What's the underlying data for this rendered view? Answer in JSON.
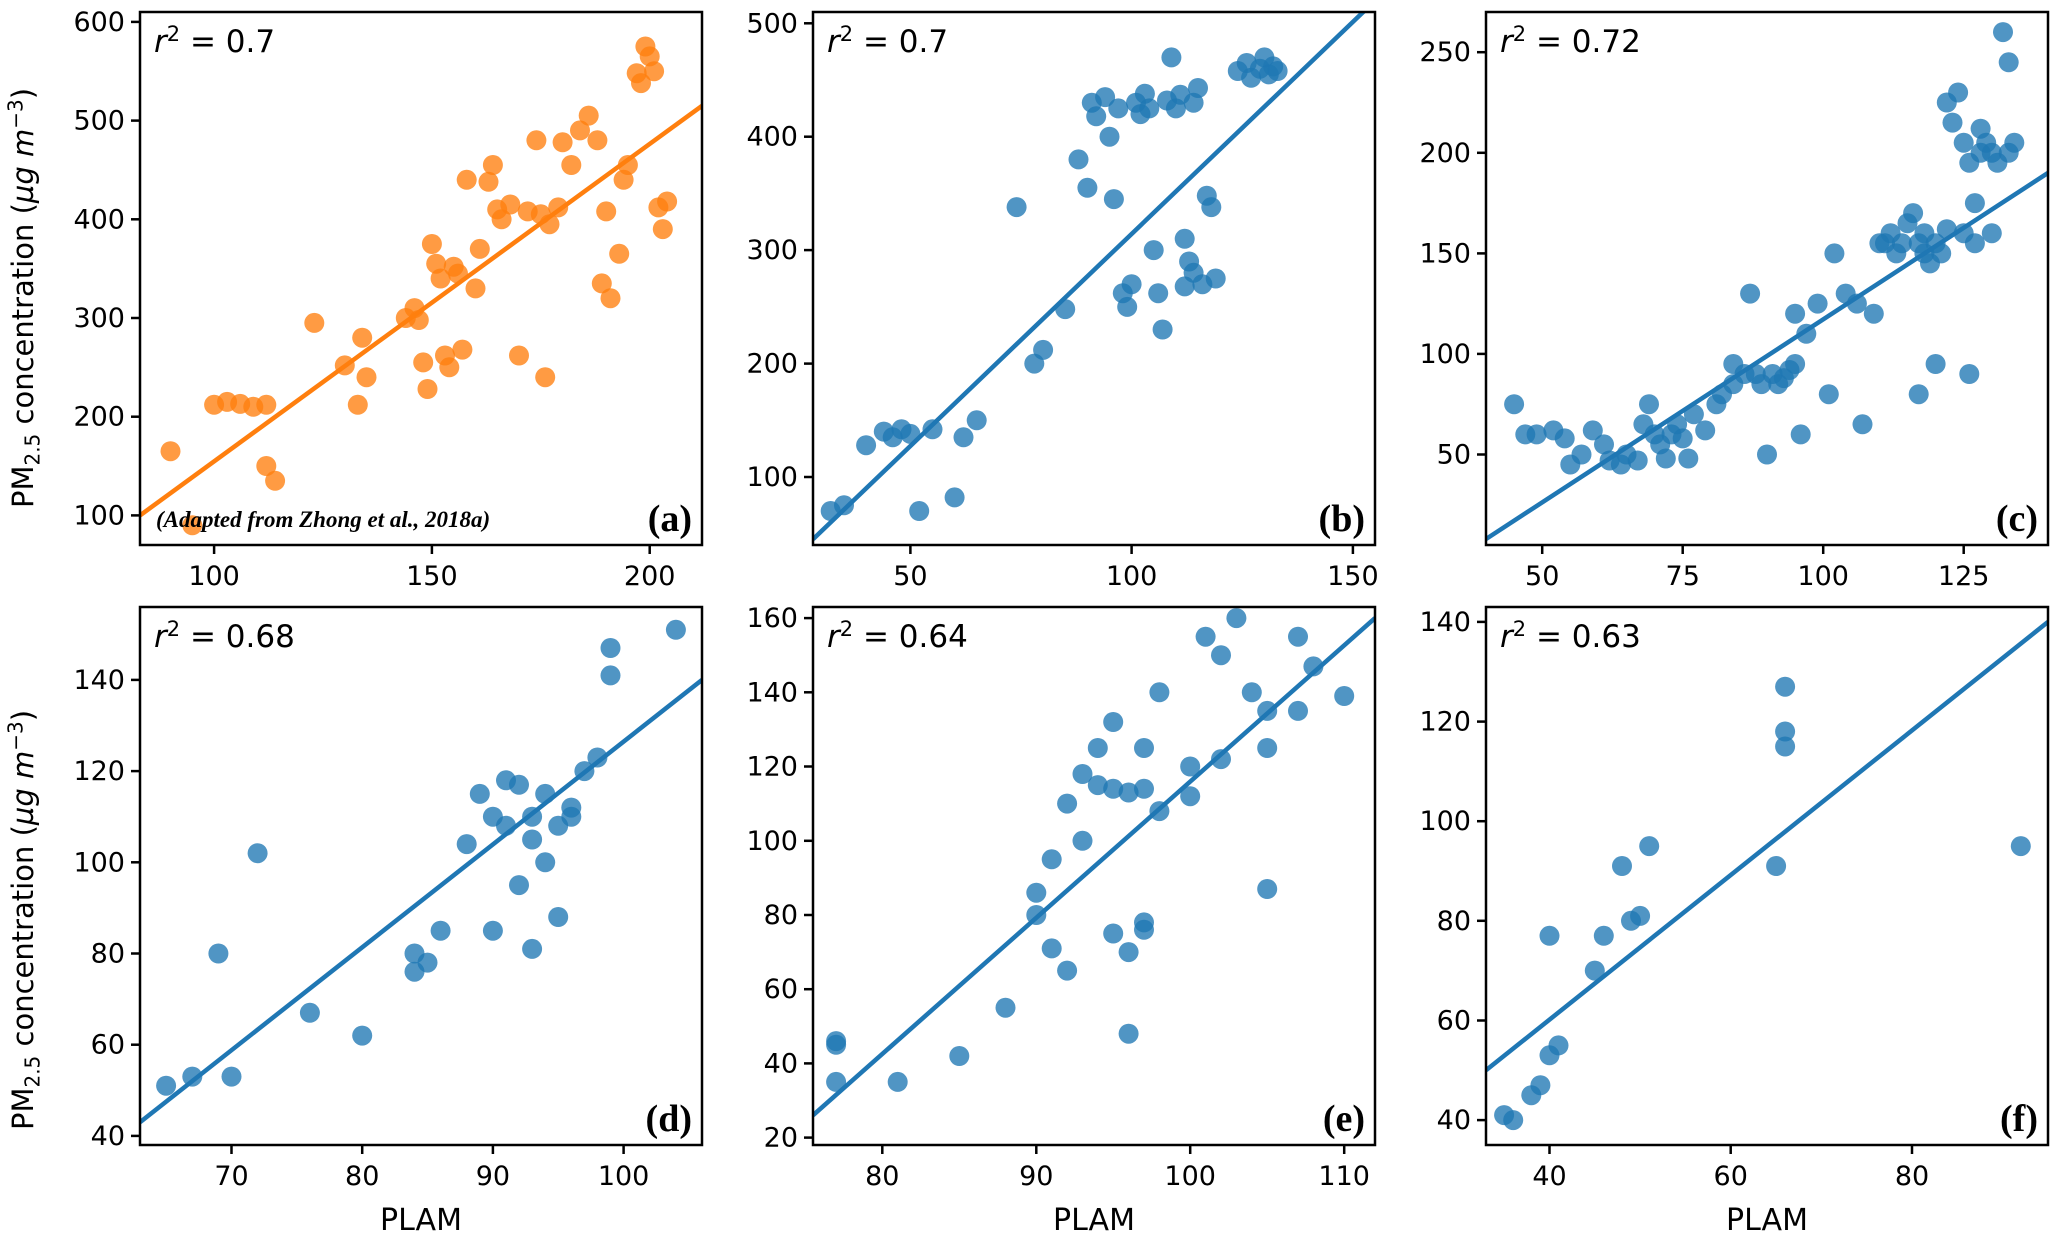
{
  "figure": {
    "ylabel": {
      "p1": "PM",
      "sub": "2.5",
      "p2": " concentration (",
      "p3": "µg m",
      "sup": "−3",
      "p4": ")"
    }
  },
  "chart_data": [
    {
      "type": "scatter",
      "letter": "(a)",
      "r2": "0.7",
      "note": "(Adapted from Zhong et al., 2018a)",
      "color": "#ff7f0e",
      "xlabel": "",
      "xlim": [
        83,
        212
      ],
      "ylim": [
        70,
        610
      ],
      "xticks": [
        100,
        150,
        200
      ],
      "yticks": [
        100,
        200,
        300,
        400,
        500,
        600
      ],
      "line": [
        [
          83,
          100
        ],
        [
          212,
          515
        ]
      ],
      "points": [
        [
          95,
          90
        ],
        [
          90,
          165
        ],
        [
          100,
          212
        ],
        [
          103,
          215
        ],
        [
          106,
          213
        ],
        [
          109,
          210
        ],
        [
          112,
          212
        ],
        [
          112,
          150
        ],
        [
          114,
          135
        ],
        [
          123,
          295
        ],
        [
          130,
          252
        ],
        [
          133,
          212
        ],
        [
          134,
          280
        ],
        [
          135,
          240
        ],
        [
          144,
          300
        ],
        [
          146,
          310
        ],
        [
          147,
          298
        ],
        [
          148,
          255
        ],
        [
          149,
          228
        ],
        [
          150,
          375
        ],
        [
          151,
          355
        ],
        [
          152,
          340
        ],
        [
          153,
          262
        ],
        [
          154,
          250
        ],
        [
          155,
          352
        ],
        [
          156,
          345
        ],
        [
          157,
          268
        ],
        [
          158,
          440
        ],
        [
          160,
          330
        ],
        [
          161,
          370
        ],
        [
          163,
          438
        ],
        [
          164,
          455
        ],
        [
          165,
          410
        ],
        [
          166,
          400
        ],
        [
          168,
          415
        ],
        [
          170,
          262
        ],
        [
          172,
          408
        ],
        [
          174,
          480
        ],
        [
          175,
          405
        ],
        [
          176,
          240
        ],
        [
          177,
          395
        ],
        [
          179,
          412
        ],
        [
          180,
          478
        ],
        [
          182,
          455
        ],
        [
          184,
          490
        ],
        [
          186,
          505
        ],
        [
          188,
          480
        ],
        [
          189,
          335
        ],
        [
          190,
          408
        ],
        [
          191,
          320
        ],
        [
          193,
          365
        ],
        [
          194,
          440
        ],
        [
          195,
          455
        ],
        [
          197,
          548
        ],
        [
          198,
          538
        ],
        [
          199,
          575
        ],
        [
          200,
          565
        ],
        [
          201,
          550
        ],
        [
          202,
          412
        ],
        [
          203,
          390
        ],
        [
          204,
          418
        ]
      ]
    },
    {
      "type": "scatter",
      "letter": "(b)",
      "r2": "0.7",
      "note": "",
      "color": "#1f77b4",
      "xlabel": "",
      "xlim": [
        28,
        155
      ],
      "ylim": [
        40,
        510
      ],
      "xticks": [
        50,
        100,
        150
      ],
      "yticks": [
        100,
        200,
        300,
        400,
        500
      ],
      "line": [
        [
          28,
          45
        ],
        [
          155,
          520
        ]
      ],
      "points": [
        [
          32,
          70
        ],
        [
          35,
          75
        ],
        [
          40,
          128
        ],
        [
          44,
          140
        ],
        [
          46,
          135
        ],
        [
          48,
          142
        ],
        [
          50,
          138
        ],
        [
          52,
          70
        ],
        [
          55,
          142
        ],
        [
          60,
          82
        ],
        [
          62,
          135
        ],
        [
          65,
          150
        ],
        [
          74,
          338
        ],
        [
          78,
          200
        ],
        [
          80,
          212
        ],
        [
          85,
          248
        ],
        [
          88,
          380
        ],
        [
          90,
          355
        ],
        [
          91,
          430
        ],
        [
          92,
          418
        ],
        [
          94,
          435
        ],
        [
          95,
          400
        ],
        [
          96,
          345
        ],
        [
          97,
          425
        ],
        [
          98,
          262
        ],
        [
          99,
          250
        ],
        [
          100,
          270
        ],
        [
          101,
          430
        ],
        [
          102,
          420
        ],
        [
          103,
          438
        ],
        [
          104,
          425
        ],
        [
          105,
          300
        ],
        [
          106,
          262
        ],
        [
          107,
          230
        ],
        [
          108,
          432
        ],
        [
          109,
          470
        ],
        [
          110,
          425
        ],
        [
          111,
          437
        ],
        [
          112,
          268
        ],
        [
          112,
          310
        ],
        [
          113,
          290
        ],
        [
          114,
          280
        ],
        [
          114,
          430
        ],
        [
          115,
          443
        ],
        [
          116,
          270
        ],
        [
          117,
          348
        ],
        [
          118,
          338
        ],
        [
          119,
          275
        ],
        [
          124,
          458
        ],
        [
          126,
          465
        ],
        [
          127,
          452
        ],
        [
          129,
          460
        ],
        [
          130,
          470
        ],
        [
          131,
          455
        ],
        [
          132,
          462
        ],
        [
          133,
          458
        ]
      ]
    },
    {
      "type": "scatter",
      "letter": "(c)",
      "r2": "0.72",
      "note": "",
      "color": "#1f77b4",
      "xlabel": "",
      "xlim": [
        40,
        140
      ],
      "ylim": [
        5,
        270
      ],
      "xticks": [
        50,
        75,
        100,
        125
      ],
      "yticks": [
        50,
        100,
        150,
        200,
        250
      ],
      "line": [
        [
          40,
          8
        ],
        [
          140,
          190
        ]
      ],
      "points": [
        [
          45,
          75
        ],
        [
          47,
          60
        ],
        [
          49,
          60
        ],
        [
          52,
          62
        ],
        [
          54,
          58
        ],
        [
          55,
          45
        ],
        [
          57,
          50
        ],
        [
          59,
          62
        ],
        [
          61,
          55
        ],
        [
          62,
          47
        ],
        [
          64,
          45
        ],
        [
          65,
          50
        ],
        [
          67,
          47
        ],
        [
          68,
          65
        ],
        [
          69,
          75
        ],
        [
          70,
          60
        ],
        [
          71,
          55
        ],
        [
          72,
          48
        ],
        [
          73,
          60
        ],
        [
          74,
          65
        ],
        [
          75,
          58
        ],
        [
          76,
          48
        ],
        [
          77,
          70
        ],
        [
          79,
          62
        ],
        [
          81,
          75
        ],
        [
          82,
          80
        ],
        [
          84,
          85
        ],
        [
          84,
          95
        ],
        [
          86,
          90
        ],
        [
          87,
          130
        ],
        [
          88,
          90
        ],
        [
          89,
          85
        ],
        [
          90,
          50
        ],
        [
          91,
          90
        ],
        [
          92,
          85
        ],
        [
          93,
          88
        ],
        [
          94,
          92
        ],
        [
          95,
          95
        ],
        [
          95,
          120
        ],
        [
          96,
          60
        ],
        [
          97,
          110
        ],
        [
          99,
          125
        ],
        [
          101,
          80
        ],
        [
          102,
          150
        ],
        [
          104,
          130
        ],
        [
          106,
          125
        ],
        [
          107,
          65
        ],
        [
          109,
          120
        ],
        [
          110,
          155
        ],
        [
          111,
          155
        ],
        [
          112,
          160
        ],
        [
          113,
          150
        ],
        [
          114,
          155
        ],
        [
          115,
          165
        ],
        [
          116,
          170
        ],
        [
          117,
          155
        ],
        [
          117,
          80
        ],
        [
          118,
          150
        ],
        [
          118,
          160
        ],
        [
          119,
          145
        ],
        [
          120,
          155
        ],
        [
          120,
          95
        ],
        [
          121,
          150
        ],
        [
          122,
          162
        ],
        [
          122,
          225
        ],
        [
          123,
          215
        ],
        [
          124,
          230
        ],
        [
          125,
          160
        ],
        [
          125,
          205
        ],
        [
          126,
          90
        ],
        [
          126,
          195
        ],
        [
          127,
          155
        ],
        [
          127,
          175
        ],
        [
          128,
          200
        ],
        [
          128,
          212
        ],
        [
          129,
          205
        ],
        [
          130,
          200
        ],
        [
          130,
          160
        ],
        [
          131,
          195
        ],
        [
          132,
          260
        ],
        [
          133,
          245
        ],
        [
          133,
          200
        ],
        [
          134,
          205
        ]
      ]
    },
    {
      "type": "scatter",
      "letter": "(d)",
      "r2": "0.68",
      "note": "",
      "color": "#1f77b4",
      "xlabel": "PLAM",
      "xlim": [
        63,
        106
      ],
      "ylim": [
        38,
        156
      ],
      "xticks": [
        70,
        80,
        90,
        100
      ],
      "yticks": [
        40,
        60,
        80,
        100,
        120,
        140
      ],
      "line": [
        [
          63,
          43
        ],
        [
          106,
          140
        ]
      ],
      "points": [
        [
          65,
          51
        ],
        [
          67,
          53
        ],
        [
          69,
          80
        ],
        [
          70,
          53
        ],
        [
          72,
          102
        ],
        [
          76,
          67
        ],
        [
          80,
          62
        ],
        [
          84,
          80
        ],
        [
          84,
          76
        ],
        [
          85,
          78
        ],
        [
          86,
          85
        ],
        [
          88,
          104
        ],
        [
          89,
          115
        ],
        [
          90,
          110
        ],
        [
          90,
          85
        ],
        [
          91,
          118
        ],
        [
          91,
          108
        ],
        [
          92,
          117
        ],
        [
          92,
          95
        ],
        [
          93,
          110
        ],
        [
          93,
          105
        ],
        [
          93,
          81
        ],
        [
          94,
          115
        ],
        [
          94,
          100
        ],
        [
          95,
          108
        ],
        [
          95,
          88
        ],
        [
          96,
          110
        ],
        [
          96,
          112
        ],
        [
          97,
          120
        ],
        [
          98,
          123
        ],
        [
          99,
          147
        ],
        [
          99,
          141
        ],
        [
          104,
          151
        ]
      ]
    },
    {
      "type": "scatter",
      "letter": "(e)",
      "r2": "0.64",
      "note": "",
      "color": "#1f77b4",
      "xlabel": "PLAM",
      "xlim": [
        75.5,
        112
      ],
      "ylim": [
        18,
        163
      ],
      "xticks": [
        80,
        90,
        100,
        110
      ],
      "yticks": [
        20,
        40,
        60,
        80,
        100,
        120,
        140,
        160
      ],
      "line": [
        [
          75.5,
          26
        ],
        [
          112,
          160
        ]
      ],
      "points": [
        [
          77,
          35
        ],
        [
          77,
          45
        ],
        [
          77,
          46
        ],
        [
          81,
          35
        ],
        [
          85,
          42
        ],
        [
          88,
          55
        ],
        [
          90,
          80
        ],
        [
          90,
          86
        ],
        [
          91,
          71
        ],
        [
          91,
          95
        ],
        [
          92,
          110
        ],
        [
          92,
          65
        ],
        [
          93,
          118
        ],
        [
          93,
          100
        ],
        [
          94,
          115
        ],
        [
          94,
          125
        ],
        [
          95,
          132
        ],
        [
          95,
          114
        ],
        [
          95,
          75
        ],
        [
          96,
          113
        ],
        [
          96,
          70
        ],
        [
          96,
          48
        ],
        [
          97,
          125
        ],
        [
          97,
          114
        ],
        [
          97,
          78
        ],
        [
          97,
          76
        ],
        [
          98,
          140
        ],
        [
          98,
          108
        ],
        [
          100,
          120
        ],
        [
          100,
          112
        ],
        [
          101,
          155
        ],
        [
          102,
          150
        ],
        [
          102,
          122
        ],
        [
          103,
          160
        ],
        [
          104,
          140
        ],
        [
          105,
          135
        ],
        [
          105,
          125
        ],
        [
          105,
          87
        ],
        [
          107,
          155
        ],
        [
          107,
          135
        ],
        [
          108,
          147
        ],
        [
          110,
          139
        ]
      ]
    },
    {
      "type": "scatter",
      "letter": "(f)",
      "r2": "0.63",
      "note": "",
      "color": "#1f77b4",
      "xlabel": "PLAM",
      "xlim": [
        33,
        95
      ],
      "ylim": [
        35,
        143
      ],
      "xticks": [
        40,
        60,
        80
      ],
      "yticks": [
        40,
        60,
        80,
        100,
        120,
        140
      ],
      "line": [
        [
          33,
          50
        ],
        [
          95,
          140
        ]
      ],
      "points": [
        [
          35,
          41
        ],
        [
          36,
          40
        ],
        [
          38,
          45
        ],
        [
          39,
          47
        ],
        [
          40,
          53
        ],
        [
          41,
          55
        ],
        [
          40,
          77
        ],
        [
          45,
          70
        ],
        [
          46,
          77
        ],
        [
          48,
          91
        ],
        [
          49,
          80
        ],
        [
          50,
          81
        ],
        [
          51,
          95
        ],
        [
          65,
          91
        ],
        [
          66,
          118
        ],
        [
          66,
          115
        ],
        [
          66,
          127
        ],
        [
          92,
          95
        ]
      ]
    }
  ]
}
